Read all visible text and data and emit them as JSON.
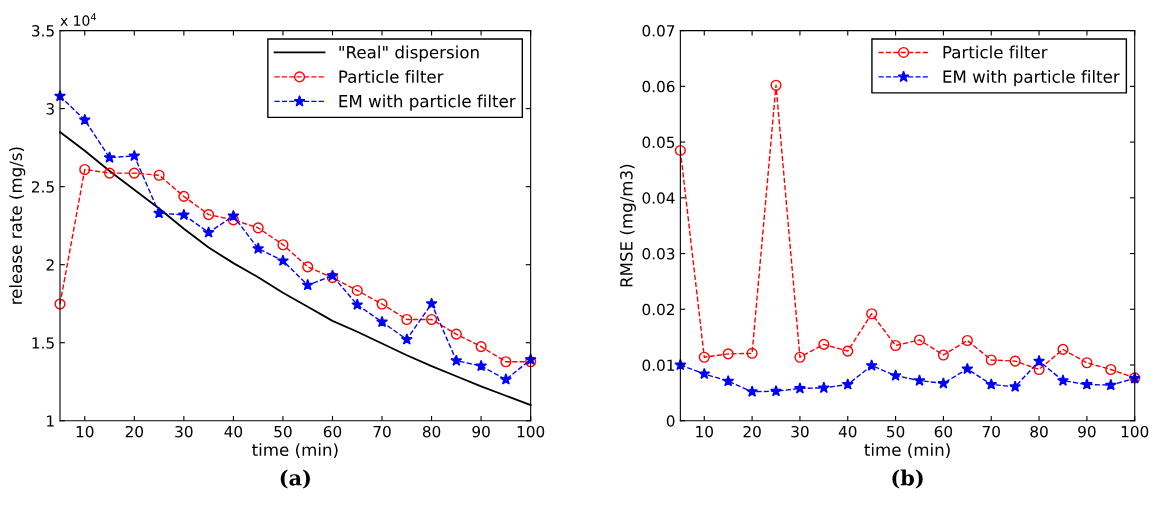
{
  "chart_data": [
    {
      "type": "line",
      "xlabel": "time (min)",
      "ylabel": "release rate (mg/s)",
      "annotations": [
        "x 10$^{4}$",
        "(a)"
      ],
      "x": [
        5,
        10,
        15,
        20,
        25,
        30,
        35,
        40,
        45,
        50,
        55,
        60,
        65,
        70,
        75,
        80,
        85,
        90,
        95,
        100
      ],
      "series": [
        {
          "name": "\"Real\" dispersion",
          "color": "#000000",
          "line_style": "solid",
          "marker": "none",
          "values": [
            2.85,
            2.73,
            2.6,
            2.48,
            2.36,
            2.23,
            2.11,
            2.01,
            1.92,
            1.82,
            1.73,
            1.64,
            1.57,
            1.495,
            1.42,
            1.35,
            1.285,
            1.22,
            1.16,
            1.1
          ]
        },
        {
          "name": "Particle filter",
          "color": "#ff0000",
          "line_style": "dashed",
          "marker": "circle",
          "values": [
            1.748,
            2.61,
            2.587,
            2.587,
            2.573,
            2.438,
            2.321,
            2.287,
            2.236,
            2.128,
            1.986,
            1.917,
            1.835,
            1.748,
            1.649,
            1.649,
            1.555,
            1.475,
            1.378,
            1.378
          ]
        },
        {
          "name": "EM with particle filter",
          "color": "#0000ff",
          "line_style": "dashed",
          "marker": "star",
          "values": [
            3.08,
            2.927,
            2.686,
            2.697,
            2.33,
            2.319,
            2.206,
            2.312,
            2.103,
            2.025,
            1.869,
            1.929,
            1.743,
            1.633,
            1.521,
            1.75,
            1.385,
            1.351,
            1.264,
            1.392
          ]
        }
      ],
      "xlim": [
        5,
        100
      ],
      "xticks": [
        10,
        20,
        30,
        40,
        50,
        60,
        70,
        80,
        90,
        100
      ],
      "ylim": [
        1,
        3.5
      ],
      "yticks": [
        1,
        1.5,
        2,
        2.5,
        3,
        3.5
      ],
      "grid": false,
      "legend": "top right"
    },
    {
      "type": "line",
      "xlabel": "time (min)",
      "ylabel": "RMSE (mg/m3)",
      "annotations": [
        "(b)"
      ],
      "x": [
        5,
        10,
        15,
        20,
        25,
        30,
        35,
        40,
        45,
        50,
        55,
        60,
        65,
        70,
        75,
        80,
        85,
        90,
        95,
        100
      ],
      "series": [
        {
          "name": "Particle filter",
          "color": "#ff0000",
          "line_style": "dashed",
          "marker": "circle",
          "values": [
            0.0485,
            0.0114,
            0.012,
            0.0121,
            0.0602,
            0.0114,
            0.0137,
            0.0125,
            0.0192,
            0.0135,
            0.0145,
            0.0118,
            0.0144,
            0.0109,
            0.0107,
            0.0092,
            0.0128,
            0.0104,
            0.0092,
            0.0077
          ]
        },
        {
          "name": "EM with particle filter",
          "color": "#0000ff",
          "line_style": "dashed",
          "marker": "star",
          "values": [
            0.01,
            0.0084,
            0.0071,
            0.0052,
            0.0053,
            0.0058,
            0.0059,
            0.0065,
            0.0099,
            0.0081,
            0.0072,
            0.0067,
            0.0093,
            0.0065,
            0.0061,
            0.0107,
            0.0072,
            0.0065,
            0.0064,
            0.0076
          ]
        }
      ],
      "xlim": [
        5,
        100
      ],
      "xticks": [
        10,
        20,
        30,
        40,
        50,
        60,
        70,
        80,
        90,
        100
      ],
      "ylim": [
        0,
        0.07
      ],
      "yticks": [
        0,
        0.01,
        0.02,
        0.03,
        0.04,
        0.05,
        0.06,
        0.07
      ],
      "grid": false,
      "legend": "top right"
    }
  ]
}
